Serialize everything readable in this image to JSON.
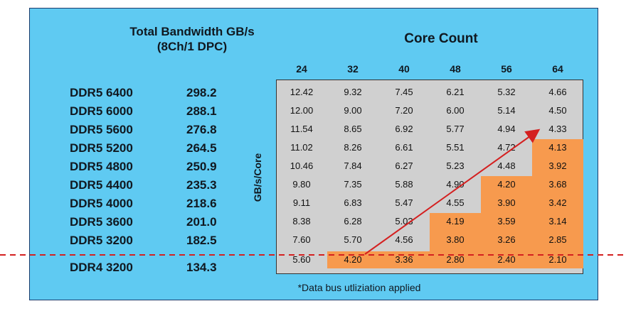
{
  "chart_data": {
    "type": "table",
    "title": "Total Bandwidth GB/s",
    "subtitle": "(8Ch/1 DPC)",
    "column_title": "Core Count",
    "ylabel": "GB/s/Core",
    "columns": [
      "24",
      "32",
      "40",
      "48",
      "56",
      "64"
    ],
    "rows": [
      {
        "memory": "DDR5 6400",
        "bandwidth": "298.2",
        "values": [
          "12.42",
          "9.32",
          "7.45",
          "6.21",
          "5.32",
          "4.66"
        ]
      },
      {
        "memory": "DDR5 6000",
        "bandwidth": "288.1",
        "values": [
          "12.00",
          "9.00",
          "7.20",
          "6.00",
          "5.14",
          "4.50"
        ]
      },
      {
        "memory": "DDR5 5600",
        "bandwidth": "276.8",
        "values": [
          "11.54",
          "8.65",
          "6.92",
          "5.77",
          "4.94",
          "4.33"
        ]
      },
      {
        "memory": "DDR5 5200",
        "bandwidth": "264.5",
        "values": [
          "11.02",
          "8.26",
          "6.61",
          "5.51",
          "4.72",
          "4.13"
        ]
      },
      {
        "memory": "DDR5 4800",
        "bandwidth": "250.9",
        "values": [
          "10.46",
          "7.84",
          "6.27",
          "5.23",
          "4.48",
          "3.92"
        ]
      },
      {
        "memory": "DDR5 4400",
        "bandwidth": "235.3",
        "values": [
          "9.80",
          "7.35",
          "5.88",
          "4.90",
          "4.20",
          "3.68"
        ]
      },
      {
        "memory": "DDR5 4000",
        "bandwidth": "218.6",
        "values": [
          "9.11",
          "6.83",
          "5.47",
          "4.55",
          "3.90",
          "3.42"
        ]
      },
      {
        "memory": "DDR5 3600",
        "bandwidth": "201.0",
        "values": [
          "8.38",
          "6.28",
          "5.03",
          "4.19",
          "3.59",
          "3.14"
        ]
      },
      {
        "memory": "DDR5 3200",
        "bandwidth": "182.5",
        "values": [
          "7.60",
          "5.70",
          "4.56",
          "3.80",
          "3.26",
          "2.85"
        ]
      },
      {
        "memory": "DDR4 3200",
        "bandwidth": "134.3",
        "values": [
          "5.60",
          "4.20",
          "3.36",
          "2.80",
          "2.40",
          "2.10"
        ]
      }
    ],
    "highlight_below": 4.2,
    "footnote": "*Data bus utliziation applied"
  },
  "colors": {
    "panel": "#5fcaf2",
    "grid": "#d0d0d0",
    "highlight": "#f79a4e",
    "arrow": "#d42020",
    "separator": "#d42020"
  }
}
